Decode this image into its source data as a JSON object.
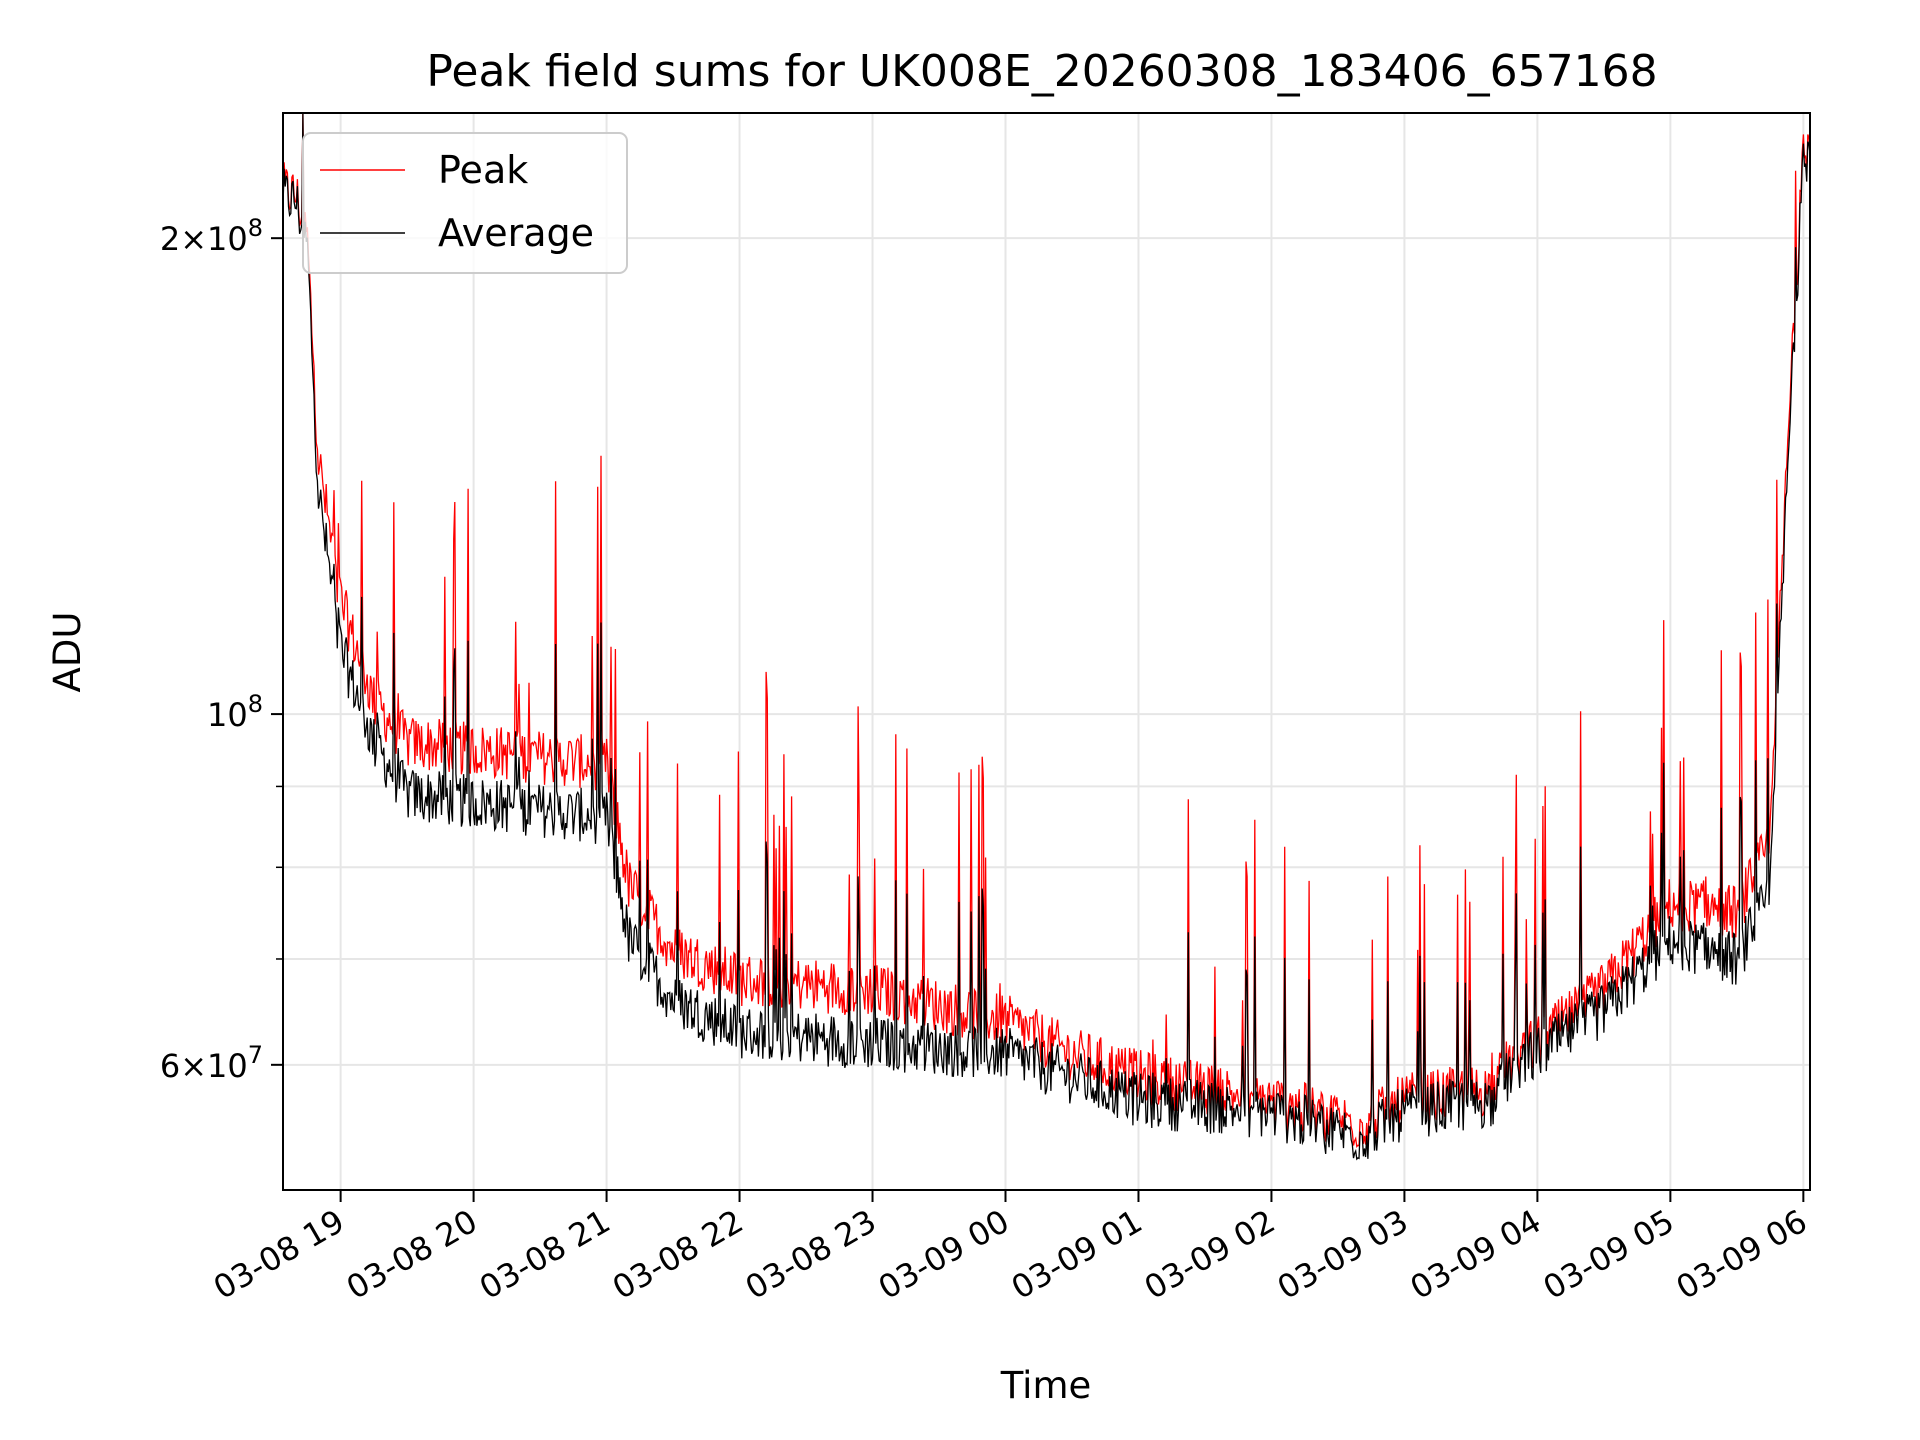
{
  "chart_data": {
    "type": "line",
    "title": "Peak field sums for UK008E_20260308_183406_657168",
    "xlabel": "Time",
    "ylabel": "ADU",
    "yscale": "log",
    "ylim": [
      50000000,
      240000000
    ],
    "xlim": [
      "03-08 18:34",
      "03-09 06:03"
    ],
    "grid": true,
    "legend_position": "top-left",
    "x_tick_labels": [
      "03-08 19",
      "03-08 20",
      "03-08 21",
      "03-08 22",
      "03-08 23",
      "03-09 00",
      "03-09 01",
      "03-09 02",
      "03-09 03",
      "03-09 04",
      "03-09 05",
      "03-09 06"
    ],
    "y_tick_labels": [
      {
        "value": 60000000,
        "mantissa": "6",
        "exponent": "7"
      },
      {
        "value": 100000000,
        "mantissa": "",
        "exponent": "8"
      },
      {
        "value": 200000000,
        "mantissa": "2",
        "exponent": "8"
      }
    ],
    "x": [
      "03-08 18:34",
      "03-08 18:40",
      "03-08 18:45",
      "03-08 18:50",
      "03-08 19:00",
      "03-08 19:15",
      "03-08 19:30",
      "03-08 20:00",
      "03-08 20:30",
      "03-08 21:00",
      "03-08 21:10",
      "03-08 21:30",
      "03-08 22:00",
      "03-08 23:00",
      "03-09 00:00",
      "03-09 00:30",
      "03-09 01:00",
      "03-09 02:00",
      "03-09 02:40",
      "03-09 03:00",
      "03-09 03:40",
      "03-09 03:50",
      "03-09 04:00",
      "03-09 04:30",
      "03-09 05:00",
      "03-09 05:30",
      "03-09 05:45",
      "03-09 05:50",
      "03-09 05:55",
      "03-09 06:00",
      "03-09 06:03"
    ],
    "series": [
      {
        "name": "Peak",
        "color": "#ff0000",
        "values": [
          215000000,
          213000000,
          200000000,
          145000000,
          118000000,
          102000000,
          96000000,
          95000000,
          94000000,
          93000000,
          78000000,
          71000000,
          68000000,
          67000000,
          64000000,
          61000000,
          59000000,
          57000000,
          55000000,
          57000000,
          58000000,
          61000000,
          62000000,
          67000000,
          76000000,
          75000000,
          83000000,
          120000000,
          170000000,
          225000000,
          230000000
        ]
      },
      {
        "name": "Average",
        "color": "#000000",
        "values": [
          213000000,
          211000000,
          197000000,
          138000000,
          110000000,
          96000000,
          89000000,
          88000000,
          87000000,
          86000000,
          72000000,
          66000000,
          63000000,
          62000000,
          61000000,
          59000000,
          57000000,
          56000000,
          54000000,
          56000000,
          57000000,
          60000000,
          61000000,
          65000000,
          72000000,
          70000000,
          77000000,
          115000000,
          165000000,
          222000000,
          228000000
        ]
      }
    ]
  },
  "colors": {
    "peak": "#ff0000",
    "average": "#000000",
    "grid": "#e6e6e6",
    "axes": "#000000"
  }
}
